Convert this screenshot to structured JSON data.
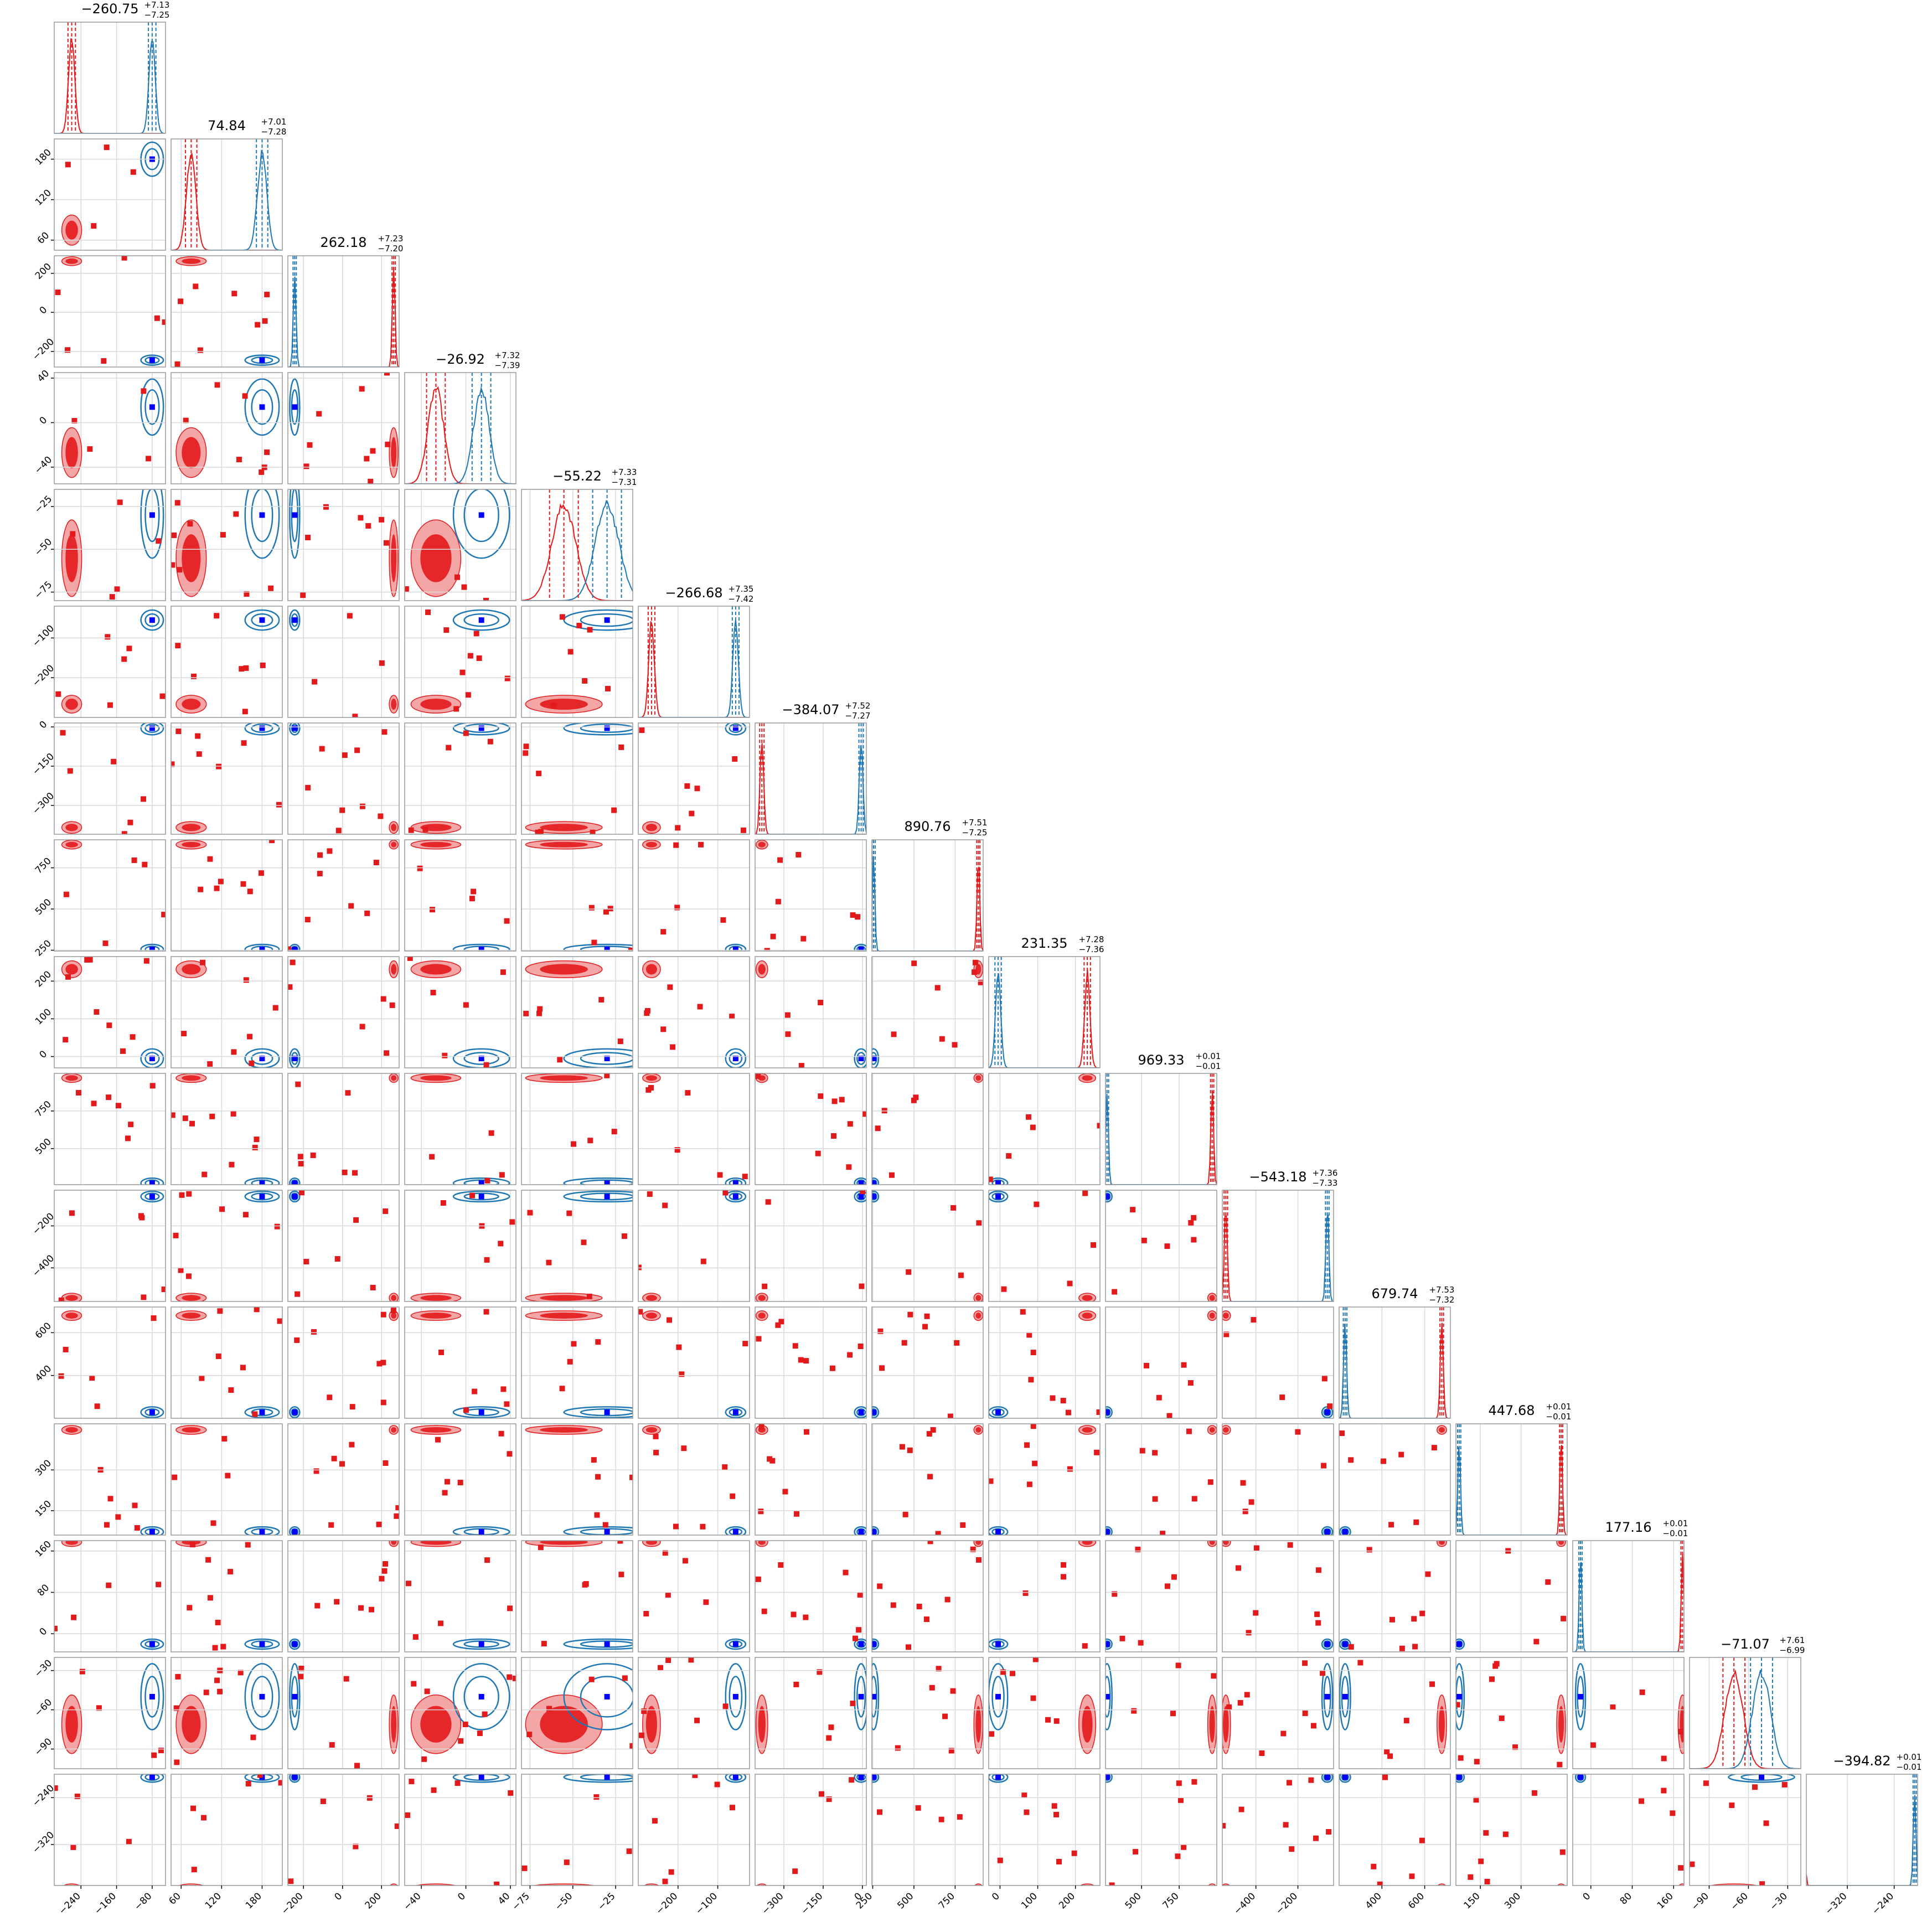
{
  "chart_data": {
    "type": "scatter",
    "subtype": "corner-plot",
    "colors": {
      "red": "#e31a1c",
      "blue": "#1f77b4",
      "blue_marker": "#0000ff",
      "grid": "#d9d9d9",
      "axis": "#999999"
    },
    "params": [
      {
        "title": {
          "value": "−260.75",
          "up": "+7.13",
          "down": "−7.25"
        },
        "range": [
          -300,
          -50
        ],
        "ticks": [
          -240,
          -160,
          -80
        ],
        "red": -260.75,
        "blue": -80.0,
        "width": 7
      },
      {
        "title": {
          "value": "74.84",
          "up": "+7.01",
          "down": "−7.28"
        },
        "range": [
          45,
          210
        ],
        "ticks": [
          60,
          120,
          180
        ],
        "red": 74.84,
        "blue": 180.0,
        "width": 7
      },
      {
        "title": {
          "value": "262.18",
          "up": "+7.23",
          "down": "−7.20"
        },
        "range": [
          -280,
          290
        ],
        "ticks": [
          -200,
          0,
          200
        ],
        "red": 262.18,
        "blue": -245.0,
        "width": 7
      },
      {
        "title": {
          "value": "−26.92",
          "up": "+7.32",
          "down": "−7.39"
        },
        "range": [
          -55,
          45
        ],
        "ticks": [
          -40,
          0,
          40
        ],
        "red": -26.92,
        "blue": 14.0,
        "width": 7
      },
      {
        "title": {
          "value": "−55.22",
          "up": "+7.33",
          "down": "−7.31"
        },
        "range": [
          -80,
          -15
        ],
        "ticks": [
          -75,
          -50,
          -25
        ],
        "red": -55.22,
        "blue": -30.0,
        "width": 7
      },
      {
        "title": {
          "value": "−266.68",
          "up": "+7.35",
          "down": "−7.42"
        },
        "range": [
          -300,
          -20
        ],
        "ticks": [
          -200,
          -100
        ],
        "red": -266.68,
        "blue": -55.0,
        "width": 7
      },
      {
        "title": {
          "value": "−384.07",
          "up": "+7.52",
          "down": "−7.27"
        },
        "range": [
          -410,
          15
        ],
        "ticks": [
          -300,
          -150,
          0
        ],
        "red": -384.07,
        "blue": -5.0,
        "width": 7
      },
      {
        "title": {
          "value": "890.76",
          "up": "+7.51",
          "down": "−7.25"
        },
        "range": [
          245,
          920
        ],
        "ticks": [
          250,
          500,
          750
        ],
        "red": 890.76,
        "blue": 255.0,
        "width": 7
      },
      {
        "title": {
          "value": "231.35",
          "up": "+7.28",
          "down": "−7.36"
        },
        "range": [
          -30,
          265
        ],
        "ticks": [
          0,
          100,
          200
        ],
        "red": 231.35,
        "blue": -5.0,
        "width": 7
      },
      {
        "title": {
          "value": "969.33",
          "up": "+0.01",
          "down": "−0.01"
        },
        "range": [
          260,
          1000
        ],
        "ticks": [
          500,
          750
        ],
        "red": 969.33,
        "blue": 270.0,
        "width": 0.01
      },
      {
        "title": {
          "value": "−543.18",
          "up": "+7.36",
          "down": "−7.33"
        },
        "range": [
          -560,
          -30
        ],
        "ticks": [
          -400,
          -200
        ],
        "red": -543.18,
        "blue": -60.0,
        "width": 7
      },
      {
        "title": {
          "value": "679.74",
          "up": "+7.53",
          "down": "−7.32"
        },
        "range": [
          200,
          720
        ],
        "ticks": [
          400,
          600
        ],
        "red": 679.74,
        "blue": 228.0,
        "width": 7
      },
      {
        "title": {
          "value": "447.68",
          "up": "+0.01",
          "down": "−0.01"
        },
        "range": [
          60,
          470
        ],
        "ticks": [
          150,
          300
        ],
        "red": 447.68,
        "blue": 72.0,
        "width": 0.01
      },
      {
        "title": {
          "value": "177.16",
          "up": "+0.01",
          "down": "−0.01"
        },
        "range": [
          -35,
          180
        ],
        "ticks": [
          0,
          80,
          160
        ],
        "red": 177.16,
        "blue": -20.0,
        "width": 0.01
      },
      {
        "title": {
          "value": "−71.07",
          "up": "+7.61",
          "down": "−6.99"
        },
        "range": [
          -105,
          -20
        ],
        "ticks": [
          -90,
          -60,
          -30
        ],
        "red": -71.07,
        "blue": -50.0,
        "width": 7
      },
      {
        "title": {
          "value": "−394.82",
          "up": "+0.01",
          "down": "−0.01"
        },
        "range": [
          -390,
          -200
        ],
        "ticks": [
          -320,
          -240
        ],
        "red": -394.82,
        "blue": -205.0,
        "width": 0.01
      }
    ]
  }
}
